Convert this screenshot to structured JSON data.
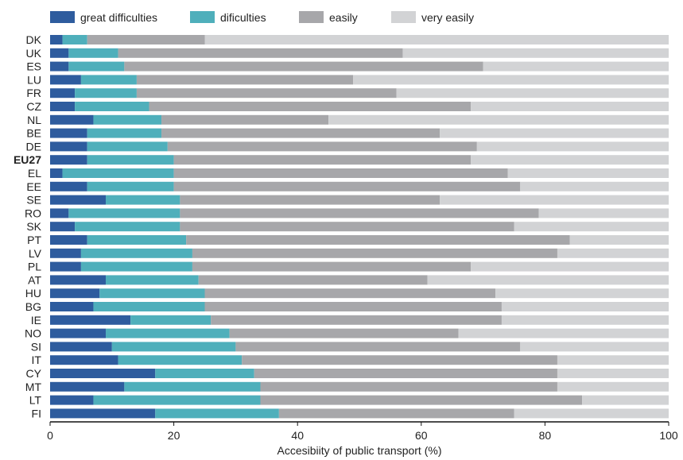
{
  "chart_data": {
    "type": "bar",
    "orientation": "horizontal",
    "stacked": true,
    "xlabel": "Accesibiity of public transport (%)",
    "ylabel": "",
    "xlim": [
      0,
      100
    ],
    "xticks": [
      0,
      20,
      40,
      60,
      80,
      100
    ],
    "grid": false,
    "legend_position": "top",
    "highlighted_category": "EU27",
    "categories": [
      "DK",
      "UK",
      "ES",
      "LU",
      "FR",
      "CZ",
      "NL",
      "BE",
      "DE",
      "EU27",
      "EL",
      "EE",
      "SE",
      "RO",
      "SK",
      "PT",
      "LV",
      "PL",
      "AT",
      "HU",
      "BG",
      "IE",
      "NO",
      "SI",
      "IT",
      "CY",
      "MT",
      "LT",
      "FI"
    ],
    "series": [
      {
        "name": "great difficulties",
        "color": "#2e5c9e",
        "values": [
          2,
          3,
          3,
          5,
          4,
          4,
          7,
          6,
          6,
          6,
          2,
          6,
          9,
          3,
          4,
          6,
          5,
          5,
          9,
          8,
          7,
          13,
          9,
          10,
          11,
          17,
          12,
          7,
          17
        ]
      },
      {
        "name": "dificulties",
        "color": "#4fafbb",
        "values": [
          4,
          8,
          9,
          9,
          10,
          12,
          11,
          12,
          13,
          14,
          18,
          14,
          12,
          18,
          17,
          16,
          18,
          18,
          15,
          17,
          18,
          13,
          20,
          20,
          20,
          16,
          22,
          27,
          20
        ]
      },
      {
        "name": "easily",
        "color": "#a7a7aa",
        "values": [
          19,
          46,
          58,
          35,
          42,
          52,
          27,
          45,
          50,
          48,
          54,
          56,
          42,
          58,
          54,
          62,
          59,
          45,
          37,
          47,
          48,
          47,
          37,
          46,
          51,
          49,
          48,
          52,
          38
        ]
      },
      {
        "name": "very easily",
        "color": "#d2d3d5",
        "values": [
          75,
          43,
          30,
          51,
          44,
          32,
          55,
          37,
          31,
          32,
          26,
          24,
          37,
          21,
          25,
          16,
          18,
          32,
          39,
          28,
          27,
          27,
          34,
          24,
          18,
          18,
          18,
          14,
          25
        ]
      }
    ]
  }
}
